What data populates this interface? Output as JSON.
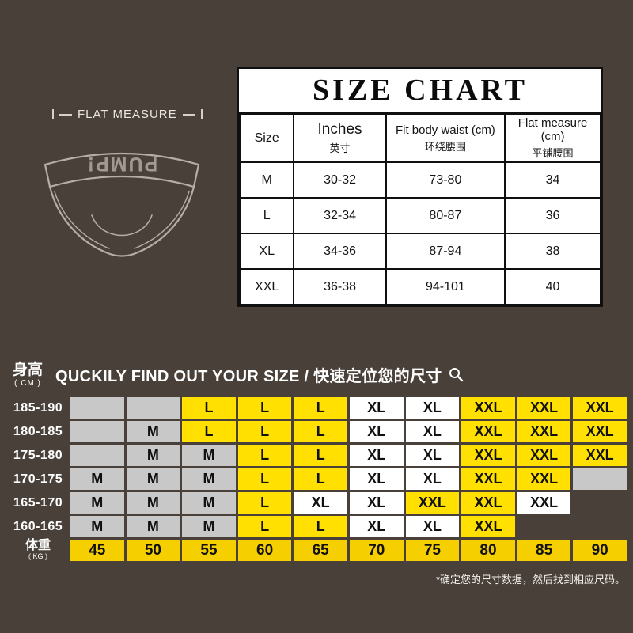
{
  "colors": {
    "background": "#494039",
    "cell_yellow": "#ffe000",
    "cell_gray": "#c8c8c8",
    "cell_white": "#ffffff",
    "weight_yellow": "#f6cf00"
  },
  "brand_waistband": "PUMP!",
  "flat_measure": {
    "label": "FLAT MEASURE"
  },
  "size_chart": {
    "title": "SIZE CHART",
    "columns": [
      {
        "label": "Size",
        "sub": ""
      },
      {
        "label": "Inches",
        "sub": "英寸"
      },
      {
        "label": "Fit body waist (cm)",
        "sub": "环绕腰围"
      },
      {
        "label": "Flat measure (cm)",
        "sub": "平铺腰围"
      }
    ],
    "rows": [
      {
        "size": "M",
        "inches": "30-32",
        "fit": "73-80",
        "flat": "34"
      },
      {
        "size": "L",
        "inches": "32-34",
        "fit": "80-87",
        "flat": "36"
      },
      {
        "size": "XL",
        "inches": "34-36",
        "fit": "87-94",
        "flat": "38"
      },
      {
        "size": "XXL",
        "inches": "36-38",
        "fit": "94-101",
        "flat": "40"
      }
    ]
  },
  "finder": {
    "height_label": "身高",
    "height_unit": "( CM )",
    "title": "QUCKILY FIND OUT YOUR SIZE / 快速定位您的尺寸",
    "weight_label": "体重",
    "weight_unit": "( KG )",
    "weights": [
      "45",
      "50",
      "55",
      "60",
      "65",
      "70",
      "75",
      "80",
      "85",
      "90"
    ],
    "rows": [
      {
        "height": "185-190",
        "cells": [
          [
            "",
            "g"
          ],
          [
            "",
            "g"
          ],
          [
            "L",
            "y"
          ],
          [
            "L",
            "y"
          ],
          [
            "L",
            "y"
          ],
          [
            "XL",
            "w"
          ],
          [
            "XL",
            "w"
          ],
          [
            "XXL",
            "y"
          ],
          [
            "XXL",
            "y"
          ],
          [
            "XXL",
            "y"
          ]
        ]
      },
      {
        "height": "180-185",
        "cells": [
          [
            "",
            "g"
          ],
          [
            "M",
            "g"
          ],
          [
            "L",
            "y"
          ],
          [
            "L",
            "y"
          ],
          [
            "L",
            "y"
          ],
          [
            "XL",
            "w"
          ],
          [
            "XL",
            "w"
          ],
          [
            "XXL",
            "y"
          ],
          [
            "XXL",
            "y"
          ],
          [
            "XXL",
            "y"
          ]
        ]
      },
      {
        "height": "175-180",
        "cells": [
          [
            "",
            "g"
          ],
          [
            "M",
            "g"
          ],
          [
            "M",
            "g"
          ],
          [
            "L",
            "y"
          ],
          [
            "L",
            "y"
          ],
          [
            "XL",
            "w"
          ],
          [
            "XL",
            "w"
          ],
          [
            "XXL",
            "y"
          ],
          [
            "XXL",
            "y"
          ],
          [
            "XXL",
            "y"
          ]
        ]
      },
      {
        "height": "170-175",
        "cells": [
          [
            "M",
            "g"
          ],
          [
            "M",
            "g"
          ],
          [
            "M",
            "g"
          ],
          [
            "L",
            "y"
          ],
          [
            "L",
            "y"
          ],
          [
            "XL",
            "w"
          ],
          [
            "XL",
            "w"
          ],
          [
            "XXL",
            "y"
          ],
          [
            "XXL",
            "y"
          ],
          [
            "",
            "g"
          ]
        ]
      },
      {
        "height": "165-170",
        "cells": [
          [
            "M",
            "g"
          ],
          [
            "M",
            "g"
          ],
          [
            "M",
            "g"
          ],
          [
            "L",
            "y"
          ],
          [
            "XL",
            "w"
          ],
          [
            "XL",
            "w"
          ],
          [
            "XXL",
            "y"
          ],
          [
            "XXL",
            "y"
          ],
          [
            "XXL",
            "w"
          ],
          [
            "",
            "n"
          ]
        ]
      },
      {
        "height": "160-165",
        "cells": [
          [
            "M",
            "g"
          ],
          [
            "M",
            "g"
          ],
          [
            "M",
            "g"
          ],
          [
            "L",
            "y"
          ],
          [
            "L",
            "y"
          ],
          [
            "XL",
            "w"
          ],
          [
            "XL",
            "w"
          ],
          [
            "XXL",
            "y"
          ],
          [
            "",
            "n"
          ],
          [
            "",
            "n"
          ]
        ]
      }
    ],
    "footnote": "*确定您的尺寸数据，然后找到相应尺码。"
  },
  "chart_data": [
    {
      "type": "table",
      "title": "SIZE CHART",
      "columns": [
        "Size",
        "Inches 英寸",
        "Fit body waist (cm) 环绕腰围",
        "Flat measure (cm) 平铺腰围"
      ],
      "rows": [
        [
          "M",
          "30-32",
          "73-80",
          "34"
        ],
        [
          "L",
          "32-34",
          "80-87",
          "36"
        ],
        [
          "XL",
          "34-36",
          "87-94",
          "38"
        ],
        [
          "XXL",
          "36-38",
          "94-101",
          "40"
        ]
      ]
    },
    {
      "type": "table",
      "title": "QUCKILY FIND OUT YOUR SIZE / 快速定位您的尺寸",
      "xlabel": "体重 (KG)",
      "ylabel": "身高 (CM)",
      "columns": [
        "45",
        "50",
        "55",
        "60",
        "65",
        "70",
        "75",
        "80",
        "85",
        "90"
      ],
      "row_labels": [
        "185-190",
        "180-185",
        "175-180",
        "170-175",
        "165-170",
        "160-165"
      ],
      "rows": [
        [
          "",
          "",
          "L",
          "L",
          "L",
          "XL",
          "XL",
          "XXL",
          "XXL",
          "XXL"
        ],
        [
          "",
          "M",
          "L",
          "L",
          "L",
          "XL",
          "XL",
          "XXL",
          "XXL",
          "XXL"
        ],
        [
          "",
          "M",
          "M",
          "L",
          "L",
          "XL",
          "XL",
          "XXL",
          "XXL",
          "XXL"
        ],
        [
          "M",
          "M",
          "M",
          "L",
          "L",
          "XL",
          "XL",
          "XXL",
          "XXL",
          ""
        ],
        [
          "M",
          "M",
          "M",
          "L",
          "XL",
          "XL",
          "XXL",
          "XXL",
          "XXL",
          ""
        ],
        [
          "M",
          "M",
          "M",
          "L",
          "L",
          "XL",
          "XL",
          "XXL",
          "",
          ""
        ]
      ]
    }
  ]
}
